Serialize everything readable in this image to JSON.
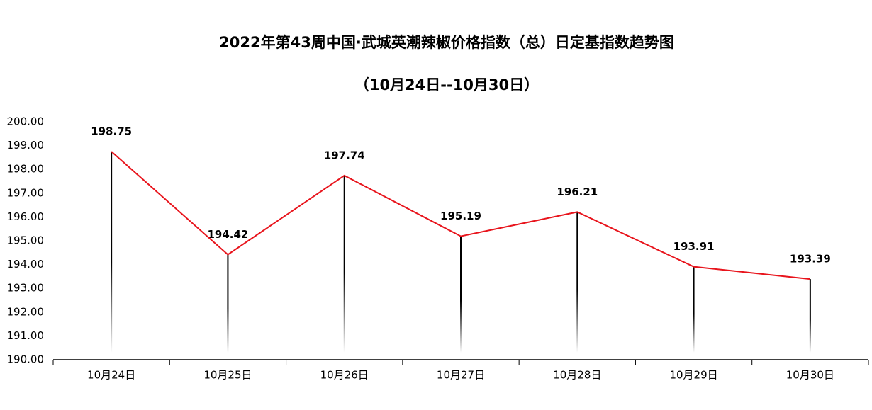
{
  "chart_data": {
    "type": "line",
    "title": "2022年第43周中国·武城英潮辣椒价格指数（总）日定基指数趋势图",
    "subtitle": "（10月24日--10月30日）",
    "categories": [
      "10月24日",
      "10月25日",
      "10月26日",
      "10月27日",
      "10月28日",
      "10月29日",
      "10月30日"
    ],
    "series": [
      {
        "color": "#e8141c",
        "values": [
          198.75,
          194.42,
          197.74,
          195.19,
          196.21,
          193.91,
          193.39
        ]
      }
    ],
    "ylim": [
      190,
      200
    ],
    "yticks": [
      {
        "value": 190,
        "label": "190.00"
      },
      {
        "value": 191,
        "label": "191.00"
      },
      {
        "value": 192,
        "label": "192.00"
      },
      {
        "value": 193,
        "label": "193.00"
      },
      {
        "value": 194,
        "label": "194.00"
      },
      {
        "value": 195,
        "label": "195.00"
      },
      {
        "value": 196,
        "label": "196.00"
      },
      {
        "value": 197,
        "label": "197.00"
      },
      {
        "value": 198,
        "label": "198.00"
      },
      {
        "value": 199,
        "label": "199.00"
      },
      {
        "value": 200,
        "label": "200.00"
      }
    ],
    "grid": false,
    "drop_lines": true
  }
}
